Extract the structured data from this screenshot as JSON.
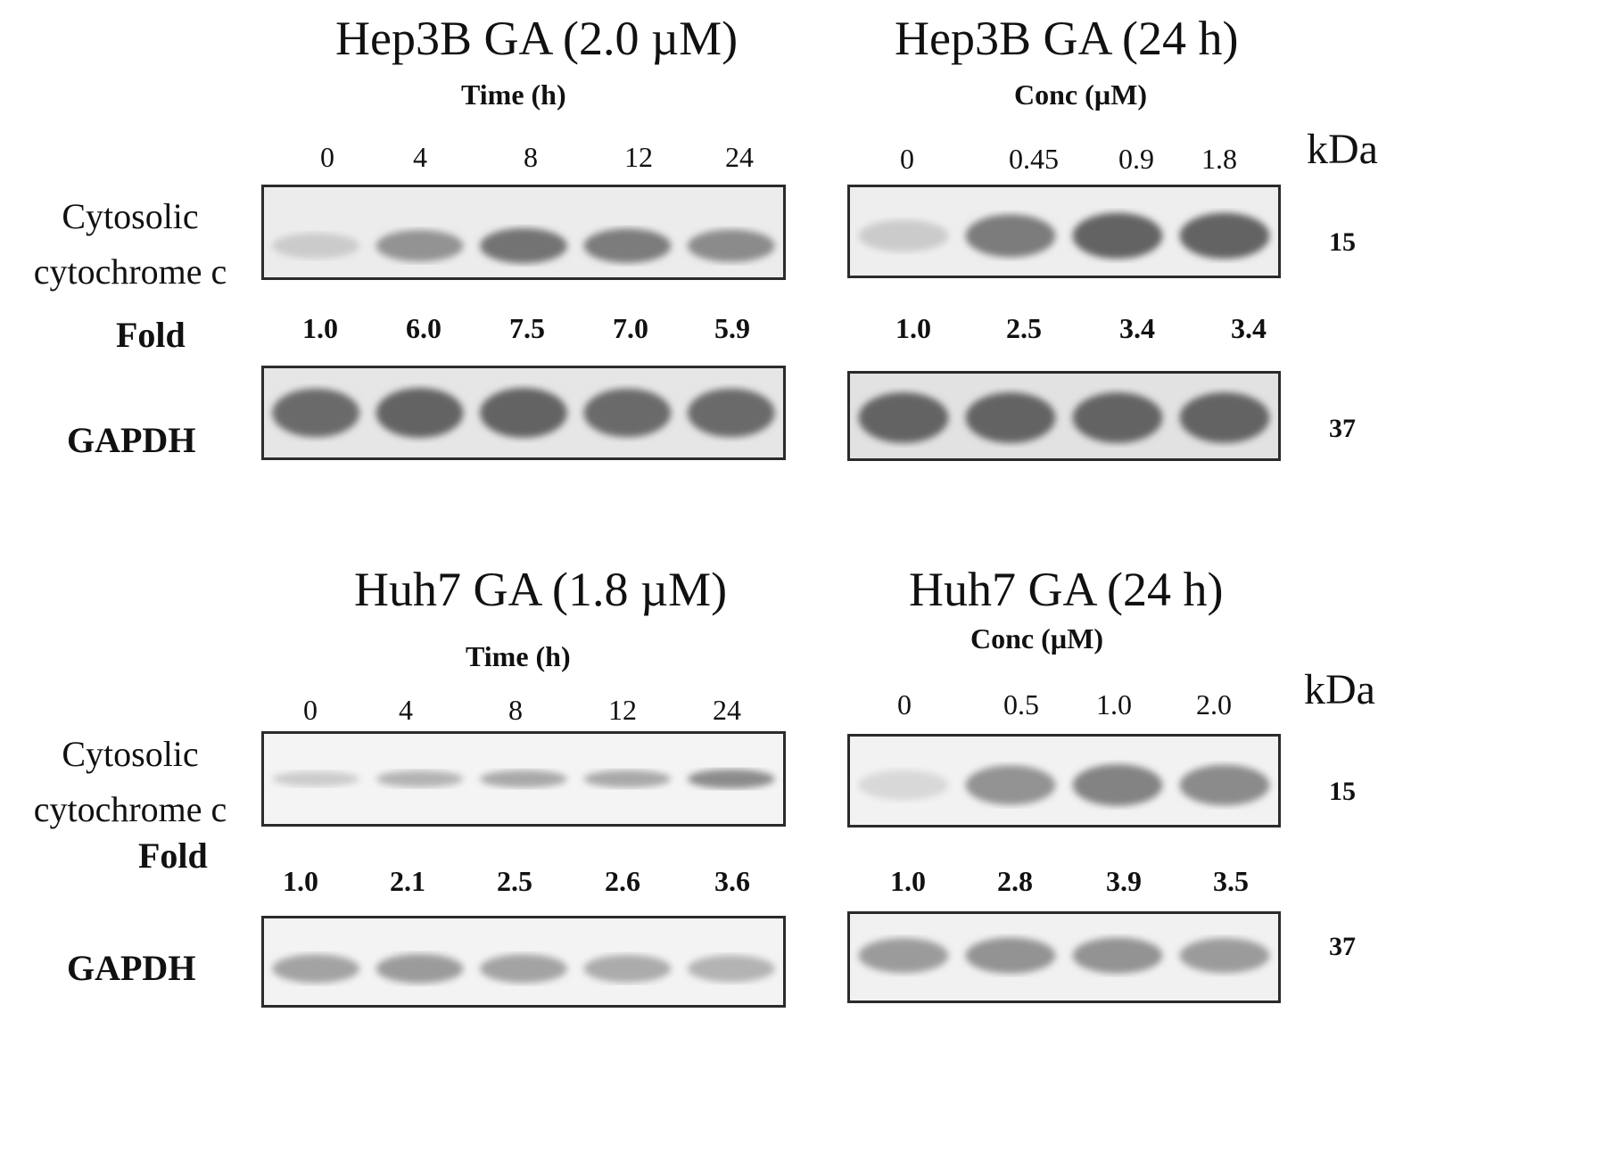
{
  "panels": [
    {
      "id": "hep3b-time",
      "title": "Hep3B GA (2.0 µM)",
      "subtitle": "Time (h)",
      "lanes": [
        "0",
        "4",
        "8",
        "12",
        "24"
      ],
      "cytc_folds": [
        "1.0",
        "6.0",
        "7.5",
        "7.0",
        "5.9"
      ],
      "cytc_levels": [
        0.2,
        0.55,
        0.75,
        0.7,
        0.6
      ],
      "gapdh_levels": [
        0.8,
        0.85,
        0.85,
        0.8,
        0.8
      ]
    },
    {
      "id": "hep3b-conc",
      "title": "Hep3B GA (24 h)",
      "subtitle": "Conc (µM)",
      "lanes": [
        "0",
        "0.45",
        "0.9",
        "1.8"
      ],
      "cytc_folds": [
        "1.0",
        "2.5",
        "3.4",
        "3.4"
      ],
      "cytc_levels": [
        0.2,
        0.7,
        0.85,
        0.85
      ],
      "gapdh_levels": [
        0.85,
        0.85,
        0.85,
        0.85
      ]
    },
    {
      "id": "huh7-time",
      "title": "Huh7 GA (1.8 µM)",
      "subtitle": "Time (h)",
      "lanes": [
        "0",
        "4",
        "8",
        "12",
        "24"
      ],
      "cytc_folds": [
        "1.0",
        "2.1",
        "2.5",
        "2.6",
        "3.6"
      ],
      "cytc_levels": [
        0.2,
        0.35,
        0.42,
        0.42,
        0.6
      ],
      "gapdh_levels": [
        0.45,
        0.5,
        0.45,
        0.4,
        0.35
      ]
    },
    {
      "id": "huh7-conc",
      "title": "Huh7 GA (24 h)",
      "subtitle": "Conc (µM)",
      "lanes": [
        "0",
        "0.5",
        "1.0",
        "2.0"
      ],
      "cytc_folds": [
        "1.0",
        "2.8",
        "3.9",
        "3.5"
      ],
      "cytc_levels": [
        0.12,
        0.55,
        0.65,
        0.6
      ],
      "gapdh_levels": [
        0.5,
        0.55,
        0.55,
        0.5
      ]
    }
  ],
  "row_labels": {
    "cytc_line1": "Cytosolic",
    "cytc_line2": "cytochrome c",
    "fold": "Fold",
    "gapdh": "GAPDH"
  },
  "kda_label": "kDa",
  "mw": {
    "cytc": "15",
    "gapdh": "37"
  }
}
